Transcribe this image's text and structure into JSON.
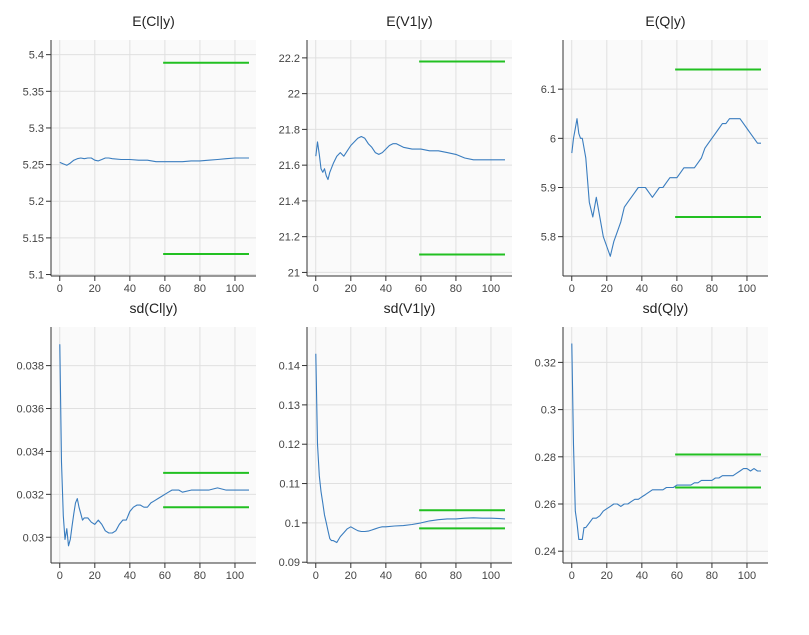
{
  "colors": {
    "trace": "#3a7dbf",
    "bounds": "#22c022",
    "panel_bg": "#fafafa",
    "grid": "#e0e0e0",
    "axis": "#333333"
  },
  "chart_data": [
    {
      "type": "line",
      "title": "E(Cl|y)",
      "xlim": [
        -5,
        112
      ],
      "ylim": [
        5.098,
        5.42
      ],
      "xticks": [
        0,
        20,
        40,
        60,
        80,
        100
      ],
      "xtick_labels": [
        "0",
        "20",
        "40",
        "60",
        "80",
        "100"
      ],
      "yticks": [
        5.1,
        5.15,
        5.2,
        5.25,
        5.3,
        5.35,
        5.4
      ],
      "ytick_labels": [
        "5.1",
        "5.15",
        "5.2",
        "5.25",
        "5.3",
        "5.35",
        "5.4"
      ],
      "x": [
        0,
        2,
        4,
        6,
        8,
        10,
        12,
        14,
        16,
        18,
        20,
        22,
        24,
        26,
        28,
        30,
        35,
        40,
        45,
        50,
        55,
        60,
        65,
        70,
        75,
        80,
        85,
        90,
        95,
        100,
        105,
        108
      ],
      "y": [
        5.253,
        5.251,
        5.249,
        5.252,
        5.256,
        5.258,
        5.259,
        5.258,
        5.259,
        5.259,
        5.256,
        5.255,
        5.257,
        5.259,
        5.259,
        5.258,
        5.257,
        5.257,
        5.256,
        5.256,
        5.254,
        5.254,
        5.254,
        5.254,
        5.255,
        5.255,
        5.256,
        5.257,
        5.258,
        5.259,
        5.259,
        5.259
      ],
      "bounds": [
        {
          "y": 5.389,
          "x0": 59,
          "x1": 108
        },
        {
          "y": 5.128,
          "x0": 59,
          "x1": 108
        }
      ]
    },
    {
      "type": "line",
      "title": "E(V1|y)",
      "xlim": [
        -5,
        112
      ],
      "ylim": [
        20.98,
        22.3
      ],
      "xticks": [
        0,
        20,
        40,
        60,
        80,
        100
      ],
      "xtick_labels": [
        "0",
        "20",
        "40",
        "60",
        "80",
        "100"
      ],
      "yticks": [
        21,
        21.2,
        21.4,
        21.6,
        21.8,
        22,
        22.2
      ],
      "ytick_labels": [
        "21",
        "21.2",
        "21.4",
        "21.6",
        "21.8",
        "22",
        "22.2"
      ],
      "x": [
        0,
        1,
        2,
        3,
        4,
        5,
        6,
        7,
        8,
        10,
        12,
        14,
        16,
        18,
        20,
        22,
        24,
        26,
        28,
        30,
        32,
        34,
        36,
        38,
        40,
        42,
        44,
        46,
        48,
        50,
        55,
        60,
        65,
        70,
        75,
        80,
        85,
        90,
        95,
        100,
        105,
        108
      ],
      "y": [
        21.65,
        21.73,
        21.66,
        21.58,
        21.56,
        21.58,
        21.54,
        21.52,
        21.56,
        21.61,
        21.65,
        21.67,
        21.65,
        21.68,
        21.71,
        21.73,
        21.75,
        21.76,
        21.75,
        21.72,
        21.7,
        21.67,
        21.66,
        21.67,
        21.69,
        21.71,
        21.72,
        21.72,
        21.71,
        21.7,
        21.69,
        21.69,
        21.68,
        21.68,
        21.67,
        21.66,
        21.64,
        21.63,
        21.63,
        21.63,
        21.63,
        21.63
      ],
      "bounds": [
        {
          "y": 22.18,
          "x0": 59,
          "x1": 108
        },
        {
          "y": 21.1,
          "x0": 59,
          "x1": 108
        }
      ]
    },
    {
      "type": "line",
      "title": "E(Q|y)",
      "xlim": [
        -5,
        112
      ],
      "ylim": [
        5.72,
        6.2
      ],
      "xticks": [
        0,
        20,
        40,
        60,
        80,
        100
      ],
      "xtick_labels": [
        "0",
        "20",
        "40",
        "60",
        "80",
        "100"
      ],
      "yticks": [
        5.8,
        5.9,
        6.0,
        6.1
      ],
      "ytick_labels": [
        "5.8",
        "5.9",
        "6",
        "6.1"
      ],
      "x": [
        0,
        1,
        2,
        3,
        4,
        5,
        6,
        8,
        10,
        12,
        14,
        16,
        18,
        20,
        22,
        24,
        26,
        28,
        30,
        32,
        34,
        36,
        38,
        40,
        42,
        44,
        46,
        48,
        50,
        52,
        54,
        56,
        58,
        60,
        62,
        64,
        66,
        68,
        70,
        72,
        74,
        76,
        78,
        80,
        82,
        84,
        86,
        88,
        90,
        92,
        94,
        96,
        98,
        100,
        102,
        104,
        106,
        108
      ],
      "y": [
        5.97,
        6.0,
        6.02,
        6.04,
        6.01,
        6.0,
        6.0,
        5.96,
        5.87,
        5.84,
        5.88,
        5.84,
        5.8,
        5.78,
        5.76,
        5.79,
        5.81,
        5.83,
        5.86,
        5.87,
        5.88,
        5.89,
        5.9,
        5.9,
        5.9,
        5.89,
        5.88,
        5.89,
        5.9,
        5.9,
        5.91,
        5.92,
        5.92,
        5.92,
        5.93,
        5.94,
        5.94,
        5.94,
        5.94,
        5.95,
        5.96,
        5.98,
        5.99,
        6.0,
        6.01,
        6.02,
        6.03,
        6.03,
        6.04,
        6.04,
        6.04,
        6.04,
        6.03,
        6.02,
        6.01,
        6.0,
        5.99,
        5.99
      ],
      "bounds": [
        {
          "y": 6.14,
          "x0": 59,
          "x1": 108
        },
        {
          "y": 5.84,
          "x0": 59,
          "x1": 108
        }
      ]
    },
    {
      "type": "line",
      "title": "sd(Cl|y)",
      "xlim": [
        -5,
        112
      ],
      "ylim": [
        0.0288,
        0.0398
      ],
      "xticks": [
        0,
        20,
        40,
        60,
        80,
        100
      ],
      "xtick_labels": [
        "0",
        "20",
        "40",
        "60",
        "80",
        "100"
      ],
      "yticks": [
        0.03,
        0.032,
        0.034,
        0.036,
        0.038
      ],
      "ytick_labels": [
        "0.03",
        "0.032",
        "0.034",
        "0.036",
        "0.038"
      ],
      "x": [
        0,
        1,
        2,
        3,
        4,
        5,
        6,
        7,
        8,
        9,
        10,
        11,
        12,
        13,
        14,
        16,
        18,
        20,
        22,
        24,
        26,
        28,
        30,
        32,
        34,
        36,
        38,
        40,
        42,
        44,
        46,
        48,
        50,
        52,
        54,
        56,
        58,
        60,
        62,
        64,
        66,
        68,
        70,
        75,
        80,
        85,
        90,
        95,
        100,
        105,
        108
      ],
      "y": [
        0.039,
        0.0335,
        0.031,
        0.0299,
        0.0304,
        0.0296,
        0.0299,
        0.0305,
        0.0311,
        0.0316,
        0.0318,
        0.0314,
        0.0311,
        0.0308,
        0.0309,
        0.0309,
        0.0307,
        0.0306,
        0.0308,
        0.0306,
        0.0303,
        0.0302,
        0.0302,
        0.0303,
        0.0306,
        0.0308,
        0.0308,
        0.0312,
        0.0314,
        0.0315,
        0.0315,
        0.0314,
        0.0314,
        0.0316,
        0.0317,
        0.0318,
        0.0319,
        0.032,
        0.0321,
        0.0322,
        0.0322,
        0.0322,
        0.0321,
        0.0322,
        0.0322,
        0.0322,
        0.0323,
        0.0322,
        0.0322,
        0.0322,
        0.0322
      ],
      "bounds": [
        {
          "y": 0.033,
          "x0": 59,
          "x1": 108
        },
        {
          "y": 0.0314,
          "x0": 59,
          "x1": 108
        }
      ]
    },
    {
      "type": "line",
      "title": "sd(V1|y)",
      "xlim": [
        -5,
        112
      ],
      "ylim": [
        0.0898,
        0.1498
      ],
      "xticks": [
        0,
        20,
        40,
        60,
        80,
        100
      ],
      "xtick_labels": [
        "0",
        "20",
        "40",
        "60",
        "80",
        "100"
      ],
      "yticks": [
        0.09,
        0.1,
        0.11,
        0.12,
        0.13,
        0.14
      ],
      "ytick_labels": [
        "0.09",
        "0.1",
        "0.11",
        "0.12",
        "0.13",
        "0.14"
      ],
      "x": [
        0,
        1,
        2,
        3,
        4,
        5,
        6,
        7,
        8,
        9,
        10,
        12,
        14,
        16,
        18,
        20,
        22,
        24,
        26,
        28,
        30,
        32,
        34,
        36,
        38,
        40,
        45,
        50,
        55,
        60,
        65,
        70,
        75,
        80,
        85,
        90,
        95,
        100,
        105,
        108
      ],
      "y": [
        0.143,
        0.12,
        0.112,
        0.108,
        0.105,
        0.102,
        0.1,
        0.098,
        0.096,
        0.0955,
        0.0955,
        0.095,
        0.0965,
        0.0975,
        0.0985,
        0.099,
        0.0985,
        0.098,
        0.0978,
        0.0978,
        0.0979,
        0.0982,
        0.0985,
        0.0988,
        0.099,
        0.099,
        0.0992,
        0.0993,
        0.0996,
        0.1,
        0.1005,
        0.1008,
        0.101,
        0.101,
        0.1012,
        0.1013,
        0.1012,
        0.1012,
        0.1011,
        0.101
      ],
      "bounds": [
        {
          "y": 0.1032,
          "x0": 59,
          "x1": 108
        },
        {
          "y": 0.0986,
          "x0": 59,
          "x1": 108
        }
      ]
    },
    {
      "type": "line",
      "title": "sd(Q|y)",
      "xlim": [
        -5,
        112
      ],
      "ylim": [
        0.235,
        0.335
      ],
      "xticks": [
        0,
        20,
        40,
        60,
        80,
        100
      ],
      "xtick_labels": [
        "0",
        "20",
        "40",
        "60",
        "80",
        "100"
      ],
      "yticks": [
        0.24,
        0.26,
        0.28,
        0.3,
        0.32
      ],
      "ytick_labels": [
        "0.24",
        "0.26",
        "0.28",
        "0.3",
        "0.32"
      ],
      "x": [
        0,
        1,
        2,
        3,
        4,
        5,
        6,
        7,
        8,
        10,
        12,
        14,
        16,
        18,
        20,
        22,
        24,
        26,
        28,
        30,
        32,
        34,
        36,
        38,
        40,
        42,
        44,
        46,
        48,
        50,
        52,
        54,
        56,
        58,
        60,
        62,
        64,
        66,
        68,
        70,
        72,
        74,
        76,
        78,
        80,
        82,
        84,
        86,
        88,
        90,
        92,
        94,
        96,
        98,
        100,
        102,
        104,
        106,
        108
      ],
      "y": [
        0.328,
        0.285,
        0.257,
        0.252,
        0.245,
        0.245,
        0.245,
        0.25,
        0.25,
        0.252,
        0.254,
        0.254,
        0.255,
        0.257,
        0.258,
        0.259,
        0.26,
        0.26,
        0.259,
        0.26,
        0.26,
        0.261,
        0.262,
        0.262,
        0.263,
        0.264,
        0.265,
        0.266,
        0.266,
        0.266,
        0.266,
        0.267,
        0.267,
        0.267,
        0.268,
        0.268,
        0.268,
        0.268,
        0.268,
        0.269,
        0.269,
        0.27,
        0.27,
        0.27,
        0.27,
        0.271,
        0.271,
        0.272,
        0.272,
        0.272,
        0.272,
        0.273,
        0.274,
        0.275,
        0.275,
        0.274,
        0.275,
        0.274,
        0.274
      ],
      "bounds": [
        {
          "y": 0.281,
          "x0": 59,
          "x1": 108
        },
        {
          "y": 0.267,
          "x0": 59,
          "x1": 108
        }
      ]
    }
  ]
}
